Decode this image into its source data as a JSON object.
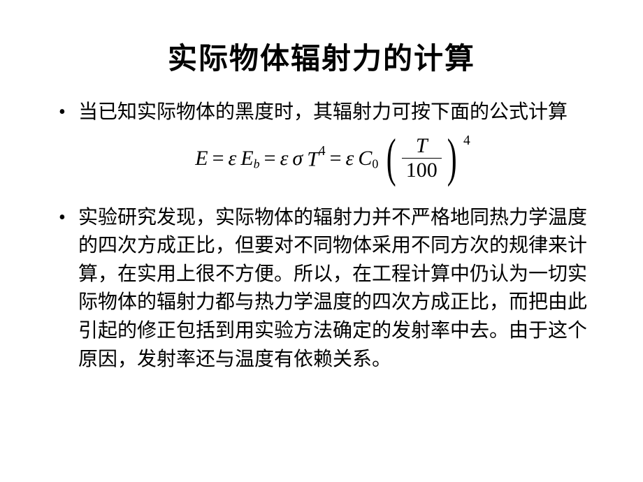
{
  "slide": {
    "title": "实际物体辐射力的计算",
    "title_fontsize": 42,
    "title_font_family": "华文行楷 / STXingkai (brush script), bold",
    "body_fontsize": 28,
    "body_font_family": "SimSun / 宋体",
    "text_color": "#000000",
    "background_color": "#ffffff",
    "bullet_glyph": "•",
    "bullets": [
      {
        "text": "当已知实际物体的黑度时，其辐射力可按下面的公式计算",
        "formula": {
          "latex": "E = \\varepsilon E_b = \\varepsilon \\sigma T^{4} = \\varepsilon C_0 \\left( \\dfrac{T}{100} \\right)^{4}",
          "parts": {
            "E": "E",
            "eq": "=",
            "epsilon": "ε",
            "Eb": "E_b",
            "sigma": "σ",
            "T": "T",
            "exp4": "4",
            "C0": "C_0",
            "frac_num": "T",
            "frac_den": "100",
            "outer_exp": "4"
          },
          "formula_font_family": "Times New Roman, italic",
          "formula_fontsize": 30
        }
      },
      {
        "text": "实验研究发现，实际物体的辐射力并不严格地同热力学温度的四次方成正比，但要对不同物体采用不同方次的规律来计算，在实用上很不方便。所以，在工程计算中仍认为一切实际物体的辐射力都与热力学温度的四次方成正比，而把由此引起的修正包括到用实验方法确定的发射率中去。由于这个原因，发射率还与温度有依赖关系。"
      }
    ]
  }
}
